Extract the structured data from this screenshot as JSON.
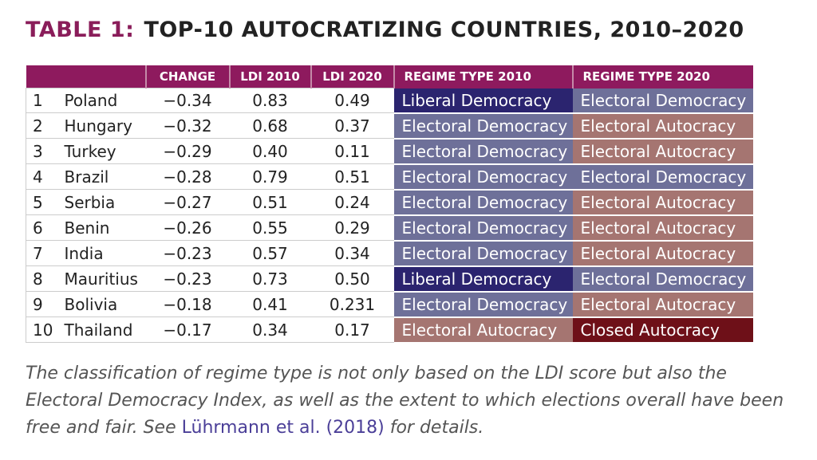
{
  "title": {
    "label": "TABLE 1:",
    "text": "TOP-10 AUTOCRATIZING COUNTRIES, 2010–2020"
  },
  "columns": [
    "",
    "",
    "CHANGE",
    "LDI 2010",
    "LDI 2020",
    "REGIME TYPE 2010",
    "REGIME TYPE 2020"
  ],
  "regime_colors": {
    "Liberal Democracy": "#2b246f",
    "Electoral Democracy": "#6e7099",
    "Electoral Autocracy": "#a57571",
    "Closed Autocracy": "#6e1018"
  },
  "rows": [
    [
      "1",
      "Poland",
      "−0.34",
      "0.83",
      "0.49",
      "Liberal Democracy",
      "Electoral Democracy"
    ],
    [
      "2",
      "Hungary",
      "−0.32",
      "0.68",
      "0.37",
      "Electoral Democracy",
      "Electoral Autocracy"
    ],
    [
      "3",
      "Turkey",
      "−0.29",
      "0.40",
      "0.11",
      "Electoral Democracy",
      "Electoral Autocracy"
    ],
    [
      "4",
      "Brazil",
      "−0.28",
      "0.79",
      "0.51",
      "Electoral Democracy",
      "Electoral Democracy"
    ],
    [
      "5",
      "Serbia",
      "−0.27",
      "0.51",
      "0.24",
      "Electoral Democracy",
      "Electoral Autocracy"
    ],
    [
      "6",
      "Benin",
      "−0.26",
      "0.55",
      "0.29",
      "Electoral Democracy",
      "Electoral Autocracy"
    ],
    [
      "7",
      "India",
      "−0.23",
      "0.57",
      "0.34",
      "Electoral Democracy",
      "Electoral Autocracy"
    ],
    [
      "8",
      "Mauritius",
      "−0.23",
      "0.73",
      "0.50",
      "Liberal Democracy",
      "Electoral Democracy"
    ],
    [
      "9",
      "Bolivia",
      "−0.18",
      "0.41",
      "0.231",
      "Electoral Democracy",
      "Electoral Autocracy"
    ],
    [
      "10",
      "Thailand",
      "−0.17",
      "0.34",
      "0.17",
      "Electoral Autocracy",
      "Closed Autocracy"
    ]
  ],
  "caption": {
    "before": "The classification of regime type is not only based on the LDI score but also the Electoral Democracy Index, as well as the extent to which elections overall have been free and fair. See ",
    "link": "Lührmann et al. (2018)",
    "after": " for details."
  }
}
